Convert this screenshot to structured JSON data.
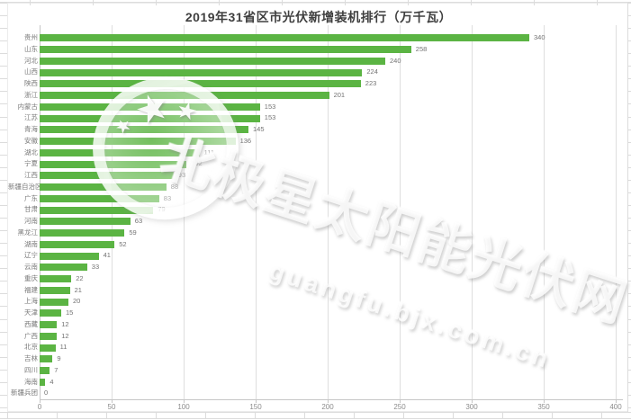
{
  "title": "2019年31省区市光伏新增装机排行（万千瓦）",
  "watermark": {
    "star": "★",
    "line1": "北极星太阳能光伏网",
    "line2": "guangfu.bjx.com.cn"
  },
  "colors": {
    "bar": "#5BB443",
    "gridline": "#DEDEDE",
    "axis_text": "#8C8C8C",
    "value_text": "#737373",
    "title_text": "#3F3F3F"
  },
  "chart_data": {
    "type": "bar",
    "orientation": "horizontal",
    "title": "2019年31省区市光伏新增装机排行（万千瓦）",
    "categories": [
      "贵州",
      "山东",
      "河北",
      "山西",
      "陕西",
      "浙江",
      "内蒙古",
      "江苏",
      "青海",
      "安徽",
      "湖北",
      "宁夏",
      "江西",
      "新疆自治区",
      "广东",
      "甘肃",
      "河南",
      "黑龙江",
      "湖南",
      "辽宁",
      "云南",
      "重庆",
      "福建",
      "上海",
      "天津",
      "西藏",
      "广西",
      "北京",
      "吉林",
      "四川",
      "海南",
      "新疆兵团"
    ],
    "values": [
      340,
      258,
      240,
      224,
      223,
      201,
      153,
      153,
      145,
      136,
      111,
      102,
      93,
      88,
      83,
      79,
      63,
      59,
      52,
      41,
      33,
      22,
      21,
      20,
      15,
      12,
      12,
      11,
      9,
      7,
      4,
      0
    ],
    "xlabel": "",
    "ylabel": "",
    "xlim": [
      0,
      400
    ],
    "x_ticks": [
      0,
      50,
      100,
      150,
      200,
      250,
      300,
      350,
      400
    ],
    "grid": true,
    "legend": false,
    "value_labels": true
  }
}
